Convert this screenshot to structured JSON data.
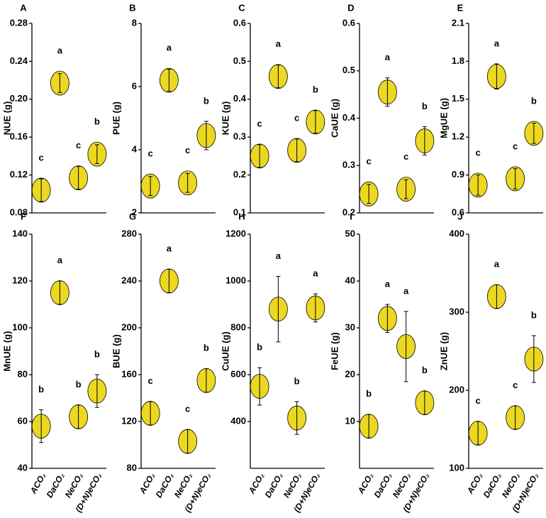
{
  "chart_data": [
    {
      "type": "dot",
      "label": "A",
      "y_label": "NUE (g)",
      "color": "#ecd820",
      "ylim": [
        0.08,
        0.28
      ],
      "yticks": [
        0.08,
        0.12,
        0.16,
        {
          "value": 0.2,
          "label": "0.20"
        },
        0.24,
        0.28
      ],
      "values": [
        0.104,
        0.217,
        0.117,
        0.142
      ],
      "errors": [
        0.012,
        0.01,
        0.012,
        0.01
      ],
      "annotations": [
        "c",
        "a",
        "c",
        "b"
      ]
    },
    {
      "type": "dot",
      "label": "B",
      "y_label": "PUE (g)",
      "color": "#ecd820",
      "ylim": [
        2,
        8
      ],
      "yticks": [
        2,
        4,
        6,
        8
      ],
      "values": [
        2.85,
        6.2,
        2.95,
        4.45
      ],
      "errors": [
        0.3,
        0.35,
        0.3,
        0.45
      ],
      "annotations": [
        "c",
        "a",
        "c",
        "b"
      ]
    },
    {
      "type": "dot",
      "label": "C",
      "y_label": "KUE (g)",
      "color": "#ecd820",
      "ylim": [
        0.1,
        0.6
      ],
      "yticks": [
        0.1,
        0.2,
        0.3,
        0.4,
        0.5,
        0.6
      ],
      "values": [
        0.25,
        0.46,
        0.265,
        0.34
      ],
      "errors": [
        0.03,
        0.03,
        0.03,
        0.03
      ],
      "annotations": [
        "c",
        "a",
        "c",
        "b"
      ]
    },
    {
      "type": "dot",
      "label": "D",
      "y_label": "CaUE (g)",
      "color": "#ecd820",
      "ylim": [
        0.2,
        0.6
      ],
      "yticks": [
        0.2,
        0.3,
        0.4,
        0.5,
        0.6
      ],
      "values": [
        0.24,
        0.455,
        0.25,
        0.352
      ],
      "errors": [
        0.02,
        0.03,
        0.02,
        0.03
      ],
      "annotations": [
        "c",
        "a",
        "c",
        "b"
      ]
    },
    {
      "type": "dot",
      "label": "E",
      "y_label": "MgUE (g)",
      "color": "#ecd820",
      "ylim": [
        0.6,
        2.1
      ],
      "yticks": [
        0.6,
        0.9,
        1.2,
        1.5,
        1.8,
        2.1
      ],
      "values": [
        0.82,
        1.68,
        0.87,
        1.23
      ],
      "errors": [
        0.08,
        0.1,
        0.08,
        0.08
      ],
      "annotations": [
        "c",
        "a",
        "c",
        "b"
      ]
    },
    {
      "type": "dot",
      "label": "F",
      "y_label": "MnUE (g)",
      "color": "#ecd820",
      "ylim": [
        40,
        140
      ],
      "yticks": [
        40,
        60,
        80,
        100,
        120,
        140
      ],
      "categories": [
        "ACO₂",
        "DaCO₂",
        "NeCO₂",
        "(D+N)eCO₂"
      ],
      "values": [
        58,
        115,
        62,
        73
      ],
      "errors": [
        7,
        5,
        5,
        7
      ],
      "annotations": [
        "b",
        "a",
        "b",
        "b"
      ]
    },
    {
      "type": "dot",
      "label": "G",
      "y_label": "BUE (g)",
      "color": "#ecd820",
      "ylim": [
        80,
        280
      ],
      "yticks": [
        80,
        120,
        160,
        200,
        240,
        280
      ],
      "categories": [
        "ACO₂",
        "DaCO₂",
        "NeCO₂",
        "(D+N)eCO₂"
      ],
      "values": [
        127,
        240,
        103,
        155
      ],
      "errors": [
        10,
        10,
        10,
        10
      ],
      "annotations": [
        "c",
        "a",
        "c",
        "b"
      ]
    },
    {
      "type": "dot",
      "label": "H",
      "y_label": "CuUE (g)",
      "color": "#ecd820",
      "ylim": [
        200,
        1200
      ],
      "yticks": [
        400,
        600,
        800,
        1000,
        1200
      ],
      "categories": [
        "ACO₂",
        "DaCO₂",
        "NeCO₂",
        "(D+N)eCO₂"
      ],
      "values": [
        550,
        880,
        415,
        885
      ],
      "errors": [
        80,
        140,
        70,
        60
      ],
      "annotations": [
        "b",
        "a",
        "b",
        "a"
      ]
    },
    {
      "type": "dot",
      "label": "I",
      "y_label": "FeUE (g)",
      "color": "#ecd820",
      "ylim": [
        0,
        50
      ],
      "yticks": [
        10,
        20,
        30,
        40,
        50
      ],
      "categories": [
        "ACO₂",
        "DaCO₂",
        "NeCO₂",
        "(D+N)eCO₂"
      ],
      "values": [
        9,
        32,
        26,
        14
      ],
      "errors": [
        2.5,
        3,
        7.5,
        2.5
      ],
      "annotations": [
        "b",
        "a",
        "a",
        "b"
      ]
    },
    {
      "type": "dot",
      "label": "J",
      "y_label": "ZnUE (g)",
      "color": "#ecd820",
      "ylim": [
        100,
        400
      ],
      "yticks": [
        100,
        200,
        300,
        400
      ],
      "categories": [
        "ACO₂",
        "DaCO₂",
        "NeCO₂",
        "(D+N)eCO₂"
      ],
      "values": [
        145,
        320,
        165,
        240
      ],
      "errors": [
        15,
        15,
        15,
        30
      ],
      "annotations": [
        "c",
        "a",
        "c",
        "b"
      ]
    }
  ]
}
